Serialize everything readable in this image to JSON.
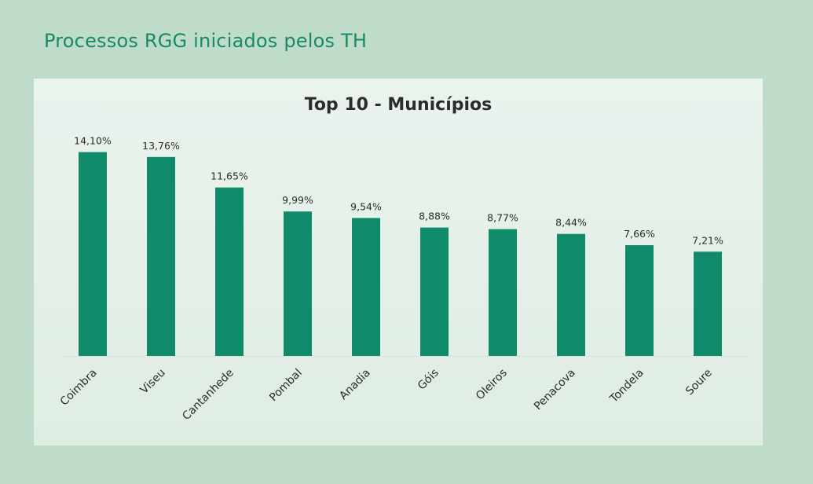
{
  "page": {
    "title": "Processos RGG iniciados pelos TH"
  },
  "colors": {
    "background": "#bfdccb",
    "title": "#198a63",
    "bar": "#0f8a6a",
    "panel": "#e6f1ea"
  },
  "chart_data": {
    "type": "bar",
    "title": "Top 10 - Municípios",
    "xlabel": "",
    "ylabel": "",
    "grid": false,
    "legend": "none",
    "ylim": [
      0,
      15
    ],
    "categories": [
      "Coimbra",
      "Viseu",
      "Cantanhede",
      "Pombal",
      "Anadia",
      "Góis",
      "Oleiros",
      "Penacova",
      "Tondela",
      "Soure"
    ],
    "values": [
      14.1,
      13.76,
      11.65,
      9.99,
      9.54,
      8.88,
      8.77,
      8.44,
      7.66,
      7.21
    ],
    "data_labels": [
      "14,10%",
      "13,76%",
      "11,65%",
      "9,99%",
      "9,54%",
      "8,88%",
      "8,77%",
      "8,44%",
      "7,66%",
      "7,21%"
    ]
  }
}
